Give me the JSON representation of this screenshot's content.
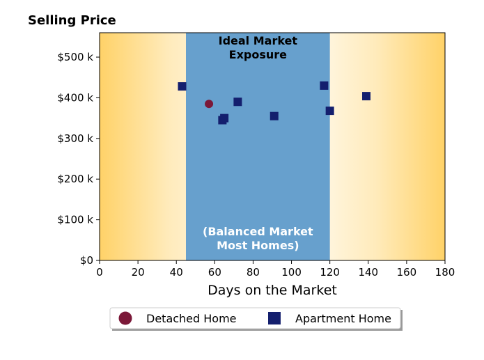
{
  "chart_data": {
    "type": "scatter",
    "ylabel": "Selling Price",
    "xlabel": "Days on the Market",
    "xlim": [
      0,
      180
    ],
    "ylim": [
      0,
      560000
    ],
    "x_ticks": [
      0,
      20,
      40,
      60,
      80,
      100,
      120,
      140,
      160,
      180
    ],
    "x_tick_labels": [
      "0",
      "20",
      "40",
      "60",
      "80",
      "100",
      "120",
      "140",
      "160",
      "180"
    ],
    "y_ticks": [
      0,
      100000,
      200000,
      300000,
      400000,
      500000
    ],
    "y_tick_labels": [
      "$0",
      "$100 k",
      "$200 k",
      "$300 k",
      "$400 k",
      "$500 k"
    ],
    "grid": false,
    "background": {
      "gradient_color": "#ffd268",
      "band": {
        "x_range": [
          45,
          120
        ],
        "color": "#67a0cd"
      }
    },
    "annotations": {
      "top": [
        "Ideal Market",
        "Exposure"
      ],
      "bottom": [
        "(Balanced Market",
        "Most Homes)"
      ]
    },
    "series": [
      {
        "name": "Detached Home",
        "marker": "circle",
        "color": "#7b1838",
        "points": [
          {
            "x": 57,
            "y": 385000
          }
        ]
      },
      {
        "name": "Apartment Home",
        "marker": "square",
        "color": "#141f6e",
        "points": [
          {
            "x": 43,
            "y": 428000
          },
          {
            "x": 64,
            "y": 345000
          },
          {
            "x": 65,
            "y": 350000
          },
          {
            "x": 72,
            "y": 390000
          },
          {
            "x": 91,
            "y": 355000
          },
          {
            "x": 117,
            "y": 430000
          },
          {
            "x": 120,
            "y": 368000
          },
          {
            "x": 139,
            "y": 404000
          }
        ]
      }
    ],
    "legend": {
      "placement": "bottom-center",
      "shadow": true
    }
  }
}
